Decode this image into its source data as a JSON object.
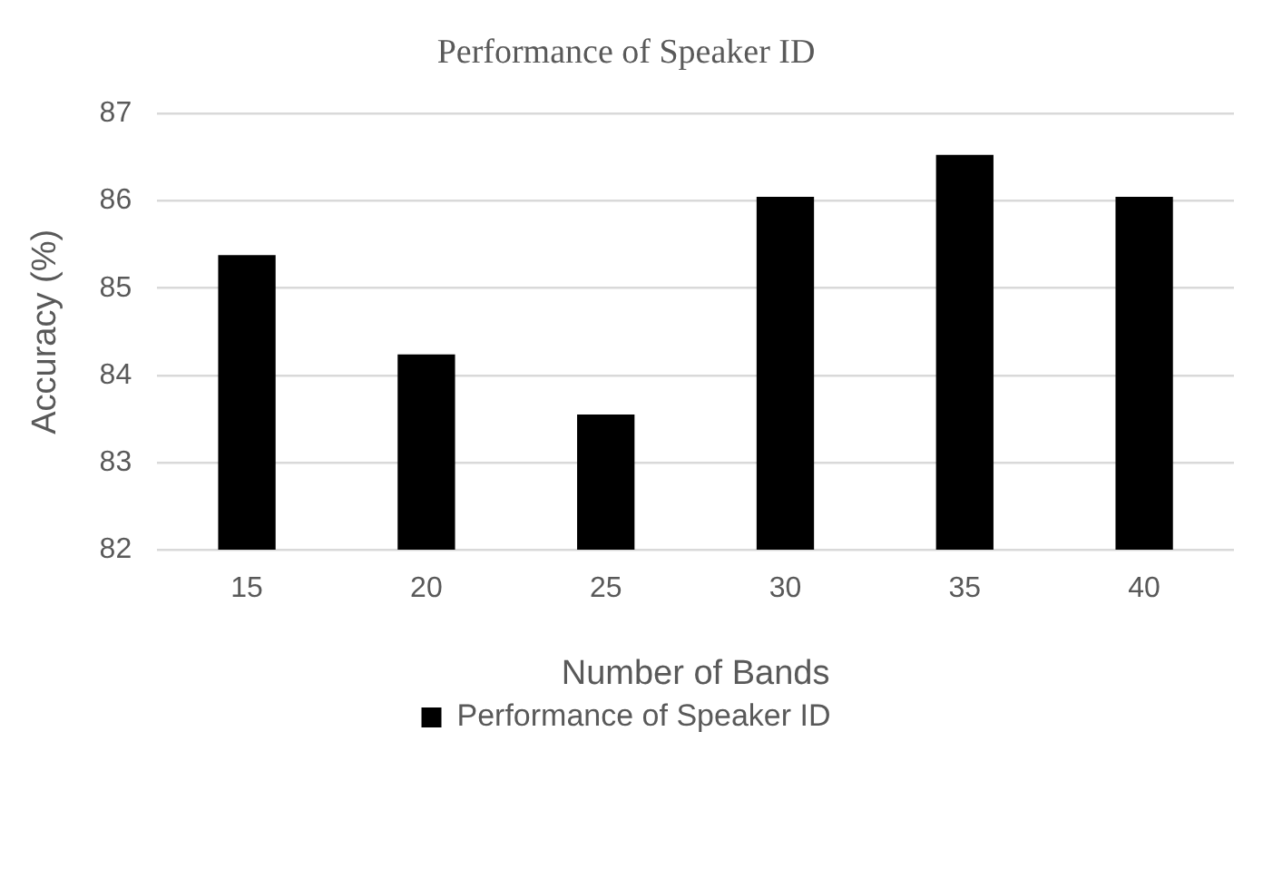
{
  "chart_data": {
    "type": "bar",
    "title": "Performance of Speaker ID",
    "xlabel": "Number of Bands",
    "ylabel": "Accuracy (%)",
    "categories": [
      "15",
      "20",
      "25",
      "30",
      "35",
      "40"
    ],
    "series": [
      {
        "name": "Performance of Speaker ID",
        "color": "#000000",
        "values": [
          85.38,
          84.24,
          83.55,
          86.05,
          86.53,
          86.05
        ]
      }
    ],
    "ylim": [
      82,
      87
    ],
    "yticks": [
      82,
      83,
      84,
      85,
      86,
      87
    ],
    "grid": "y",
    "legend": "bottom"
  }
}
